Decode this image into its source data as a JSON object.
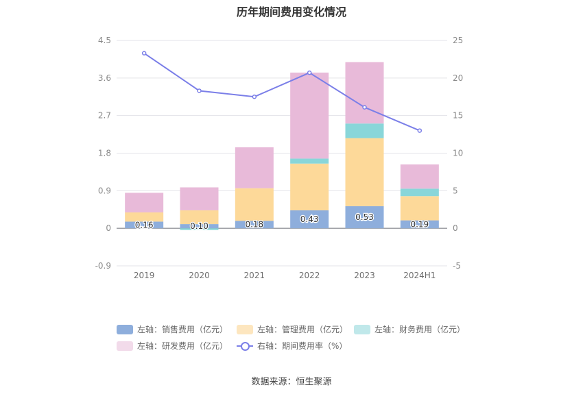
{
  "title": "历年期间费用变化情况",
  "source": "数据来源：恒生聚源",
  "chart_data": {
    "type": "bar",
    "stacked": true,
    "categories": [
      "2019",
      "2020",
      "2021",
      "2022",
      "2023",
      "2024H1"
    ],
    "left_axis": {
      "ylim": [
        -0.9,
        4.5
      ],
      "ticks": [
        "4.5",
        "3.6",
        "2.7",
        "1.8",
        "0.9",
        "0",
        "-0.9"
      ],
      "tick_values": [
        4.5,
        3.6,
        2.7,
        1.8,
        0.9,
        0,
        -0.9
      ]
    },
    "right_axis": {
      "ylim": [
        -5,
        25
      ],
      "ticks": [
        "25",
        "20",
        "15",
        "10",
        "5",
        "0",
        "-5"
      ],
      "tick_values": [
        25,
        20,
        15,
        10,
        5,
        0,
        -5
      ]
    },
    "series": [
      {
        "name": "左轴：销售费用（亿元）",
        "color": "#8eaedc",
        "values": [
          0.16,
          0.1,
          0.18,
          0.43,
          0.53,
          0.19
        ],
        "labels": [
          "0.16",
          "0.10",
          "0.18",
          "0.43",
          "0.53",
          "0.19"
        ]
      },
      {
        "name": "左轴：管理费用（亿元）",
        "color": "#fdd999",
        "values": [
          0.22,
          0.33,
          0.78,
          1.12,
          1.63,
          0.58
        ]
      },
      {
        "name": "左轴：财务费用（亿元）",
        "color": "#89d6d9",
        "values": [
          0.0,
          -0.04,
          0.0,
          0.12,
          0.35,
          0.18
        ]
      },
      {
        "name": "左轴：研发费用（亿元）",
        "color": "#e8bad9",
        "values": [
          0.47,
          0.55,
          0.98,
          2.06,
          1.47,
          0.58
        ]
      }
    ],
    "line_series": {
      "name": "右轴：期间费用率（%）",
      "color": "#7b7fe8",
      "axis": "right",
      "values": [
        23.3,
        18.3,
        17.5,
        20.7,
        16.1,
        13.0
      ]
    },
    "grid": true,
    "legend_position": "bottom"
  },
  "legend": {
    "sales": "左轴：销售费用（亿元）",
    "admin": "左轴：管理费用（亿元）",
    "finance": "左轴：财务费用（亿元）",
    "rd": "左轴：研发费用（亿元）",
    "rate": "右轴：期间费用率（%）"
  }
}
